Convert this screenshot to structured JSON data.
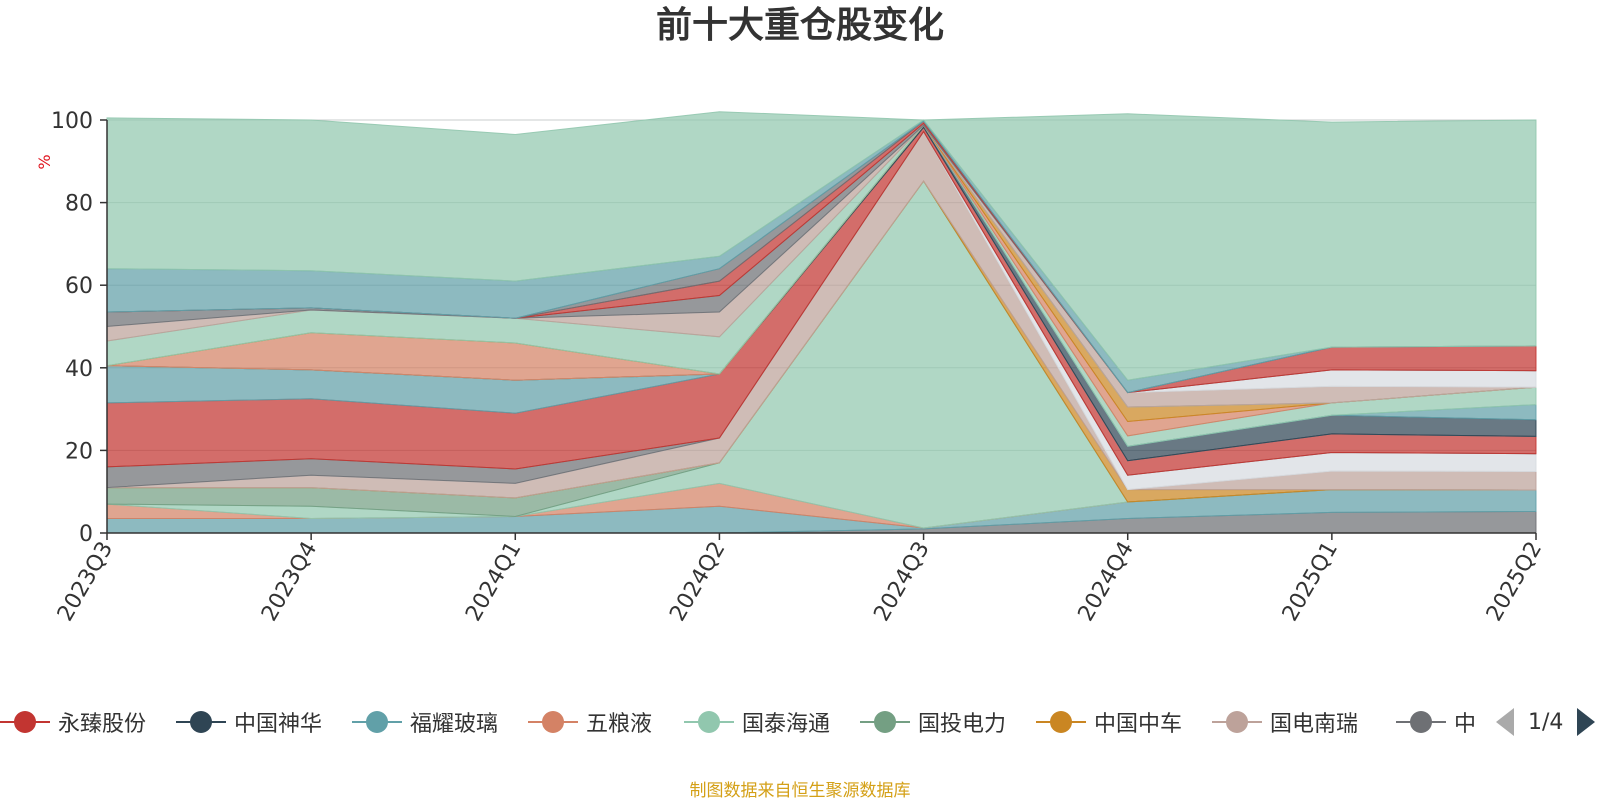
{
  "title": "前十大重仓股变化",
  "unit": "%",
  "source": "制图数据来自恒生聚源数据库",
  "pager": {
    "text": "1/4",
    "prev_label": "previous-page",
    "next_label": "next-page"
  },
  "legend": [
    {
      "name": "永臻股份",
      "color": "#c23531"
    },
    {
      "name": "中国神华",
      "color": "#2f4554"
    },
    {
      "name": "福耀玻璃",
      "color": "#61a0a8"
    },
    {
      "name": "五粮液",
      "color": "#d48265"
    },
    {
      "name": "国泰海通",
      "color": "#91c7ae"
    },
    {
      "name": "国投电力",
      "color": "#749f83"
    },
    {
      "name": "中国中车",
      "color": "#ca8622"
    },
    {
      "name": "国电南瑞",
      "color": "#bda29a"
    },
    {
      "name": "中国",
      "color": "#6e7074"
    }
  ],
  "chart_data": {
    "type": "area",
    "stacked": true,
    "title": "前十大重仓股变化",
    "ylabel": "%",
    "ylim": [
      0,
      100
    ],
    "yticks": [
      0,
      20,
      40,
      60,
      80,
      100
    ],
    "grid": true,
    "categories": [
      "2023Q3",
      "2023Q4",
      "2024Q1",
      "2024Q2",
      "2024Q3",
      "2024Q4",
      "2025Q1",
      "2025Q2"
    ],
    "bands": [
      {
        "color": "#6e7074",
        "values": [
          0,
          0,
          0,
          0,
          1,
          3.5,
          5,
          5.2
        ]
      },
      {
        "color": "#61a0a8",
        "values": [
          3.5,
          3.5,
          4,
          6.5,
          0.2,
          4,
          5.5,
          5.2
        ]
      },
      {
        "color": "#d48265",
        "values": [
          3.5,
          0,
          0,
          5.5,
          0,
          0,
          0,
          0
        ]
      },
      {
        "color": "#91c7ae",
        "values": [
          0,
          3,
          0,
          5,
          84,
          0,
          0,
          0
        ]
      },
      {
        "color": "#749f83",
        "values": [
          4,
          4.5,
          4.5,
          0,
          0,
          0,
          0,
          0
        ]
      },
      {
        "color": "#ca8622",
        "values": [
          0,
          0,
          0,
          0,
          0,
          3,
          0,
          0
        ]
      },
      {
        "color": "#bda29a",
        "values": [
          0,
          3,
          3.5,
          6,
          12,
          0,
          4.5,
          4.5
        ]
      },
      {
        "color": "#d7dbe0",
        "values": [
          0,
          0,
          0,
          0,
          0,
          3.5,
          4.5,
          4.3
        ]
      },
      {
        "color": "#6e7074",
        "values": [
          5,
          4,
          3.5,
          0,
          0,
          0,
          0,
          0
        ]
      },
      {
        "color": "#c23531",
        "values": [
          15.5,
          14.5,
          13.5,
          15.5,
          1,
          3.5,
          4.5,
          4.2
        ]
      },
      {
        "color": "#61a0a8",
        "values": [
          9,
          7,
          8,
          0,
          0,
          0,
          0,
          0
        ]
      },
      {
        "color": "#2f4554",
        "values": [
          0,
          0,
          0,
          0,
          0.5,
          3.5,
          4.5,
          4
        ]
      },
      {
        "color": "#61a0a8",
        "values": [
          0,
          0,
          0,
          0,
          0,
          0,
          0,
          3.7
        ]
      },
      {
        "color": "#91c7ae",
        "values": [
          0,
          0,
          0,
          0,
          0,
          2.5,
          3,
          4.2
        ]
      },
      {
        "color": "#d48265",
        "values": [
          0,
          9,
          9,
          0,
          0,
          3.5,
          0,
          0
        ]
      },
      {
        "color": "#ca8622",
        "values": [
          0,
          0,
          0,
          0,
          0,
          3.5,
          0,
          0
        ]
      },
      {
        "color": "#91c7ae",
        "values": [
          6,
          5.5,
          6,
          9,
          0,
          0,
          0,
          0
        ]
      },
      {
        "color": "#bda29a",
        "values": [
          3.5,
          0,
          0,
          6,
          0,
          3.5,
          4,
          0
        ]
      },
      {
        "color": "#d7dbe0",
        "values": [
          0,
          0,
          0,
          0,
          0,
          0,
          4,
          4
        ]
      },
      {
        "color": "#6e7074",
        "values": [
          3.5,
          0.5,
          0,
          4,
          0.5,
          0,
          0,
          0
        ]
      },
      {
        "color": "#c23531",
        "values": [
          0,
          0,
          0,
          3.5,
          0.5,
          0,
          5.5,
          6
        ]
      },
      {
        "color": "#6e7074",
        "values": [
          0,
          0,
          0,
          3,
          0,
          0,
          0,
          0
        ]
      },
      {
        "color": "#61a0a8",
        "values": [
          10.5,
          9,
          9,
          3,
          0.3,
          3,
          0,
          0
        ]
      },
      {
        "color": "#91c7ae",
        "values": [
          36.5,
          36.5,
          35.5,
          35,
          0,
          64.5,
          54.5,
          54.7
        ]
      }
    ]
  }
}
